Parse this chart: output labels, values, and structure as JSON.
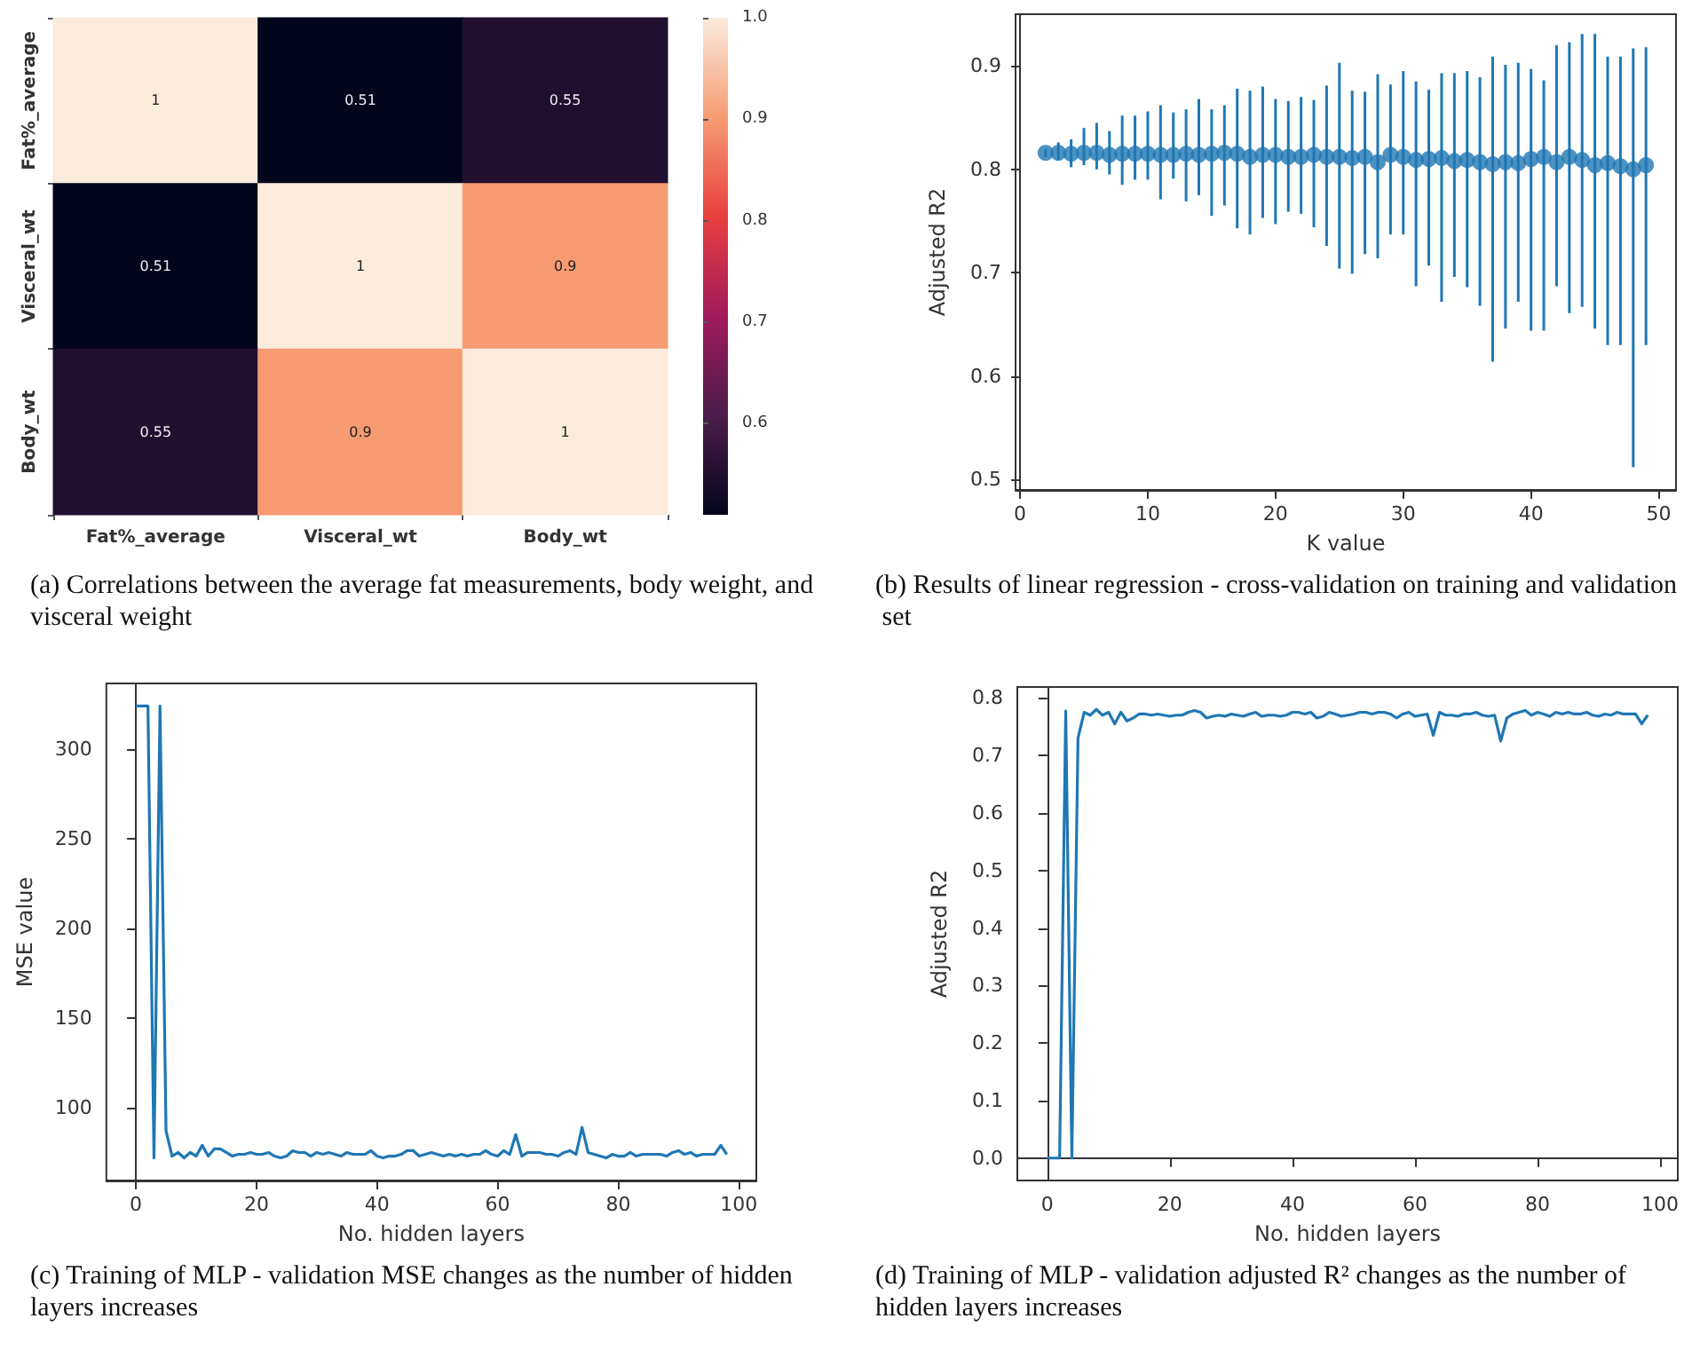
{
  "chart_data": [
    {
      "type": "heatmap",
      "title": "(a) Correlations between the average fat measurements, body weight, and visceral weight",
      "categories": [
        "Fat%_average",
        "Visceral_wt",
        "Body_wt"
      ],
      "y_categories": [
        "Fat%_average",
        "Visceral_wt",
        "Body_wt"
      ],
      "cells": [
        [
          1,
          0.51,
          0.55
        ],
        [
          0.51,
          1,
          0.9
        ],
        [
          0.55,
          0.9,
          1
        ]
      ],
      "data_labels": true,
      "clim": [
        0.51,
        1.0
      ],
      "cticks": [
        0.6,
        0.7,
        0.8,
        0.9,
        {
          "value": 1.0,
          "label": "1.0"
        }
      ]
    },
    {
      "type": "scatter",
      "title": "(b) Results of linear regression - cross-validation on training and validation set",
      "xlabel": "K value",
      "ylabel": "Adjusted R2",
      "marker": "circle",
      "color": "#1f77b4",
      "x": [
        2,
        3,
        4,
        5,
        6,
        7,
        8,
        9,
        10,
        11,
        12,
        13,
        14,
        15,
        16,
        17,
        18,
        19,
        20,
        21,
        22,
        23,
        24,
        25,
        26,
        27,
        28,
        29,
        30,
        31,
        32,
        33,
        34,
        35,
        36,
        37,
        38,
        39,
        40,
        41,
        42,
        43,
        44,
        45,
        46,
        47,
        48,
        49
      ],
      "values": [
        0.816,
        0.816,
        0.815,
        0.816,
        0.816,
        0.814,
        0.815,
        0.815,
        0.815,
        0.814,
        0.814,
        0.815,
        0.814,
        0.815,
        0.816,
        0.815,
        0.812,
        0.814,
        0.814,
        0.812,
        0.812,
        0.814,
        0.812,
        0.812,
        0.811,
        0.812,
        0.807,
        0.814,
        0.812,
        0.809,
        0.81,
        0.811,
        0.808,
        0.809,
        0.807,
        0.805,
        0.807,
        0.806,
        0.81,
        0.812,
        0.807,
        0.812,
        0.809,
        0.804,
        0.806,
        0.803,
        0.8,
        0.804
      ],
      "errors": [
        [
          0.812,
          0.82
        ],
        [
          0.809,
          0.826
        ],
        [
          0.802,
          0.829
        ],
        [
          0.804,
          0.84
        ],
        [
          0.8,
          0.845
        ],
        [
          0.795,
          0.837
        ],
        [
          0.785,
          0.852
        ],
        [
          0.79,
          0.852
        ],
        [
          0.79,
          0.856
        ],
        [
          0.771,
          0.862
        ],
        [
          0.791,
          0.855
        ],
        [
          0.769,
          0.858
        ],
        [
          0.775,
          0.868
        ],
        [
          0.755,
          0.858
        ],
        [
          0.765,
          0.862
        ],
        [
          0.743,
          0.878
        ],
        [
          0.737,
          0.876
        ],
        [
          0.753,
          0.88
        ],
        [
          0.747,
          0.868
        ],
        [
          0.759,
          0.866
        ],
        [
          0.757,
          0.87
        ],
        [
          0.744,
          0.867
        ],
        [
          0.726,
          0.881
        ],
        [
          0.704,
          0.903
        ],
        [
          0.699,
          0.876
        ],
        [
          0.718,
          0.875
        ],
        [
          0.714,
          0.892
        ],
        [
          0.737,
          0.882
        ],
        [
          0.737,
          0.895
        ],
        [
          0.687,
          0.885
        ],
        [
          0.707,
          0.877
        ],
        [
          0.672,
          0.893
        ],
        [
          0.696,
          0.893
        ],
        [
          0.686,
          0.895
        ],
        [
          0.668,
          0.889
        ],
        [
          0.614,
          0.909
        ],
        [
          0.646,
          0.901
        ],
        [
          0.672,
          0.903
        ],
        [
          0.644,
          0.897
        ],
        [
          0.644,
          0.886
        ],
        [
          0.687,
          0.92
        ],
        [
          0.661,
          0.923
        ],
        [
          0.667,
          0.931
        ],
        [
          0.646,
          0.931
        ],
        [
          0.63,
          0.909
        ],
        [
          0.63,
          0.909
        ],
        [
          0.512,
          0.917
        ],
        [
          0.63,
          0.918
        ]
      ],
      "xlim": [
        -0.35,
        51.35
      ],
      "xticks": [
        0,
        10,
        20,
        30,
        40,
        50
      ],
      "ylim": [
        0.49,
        0.95
      ],
      "yticks": [
        0.5,
        0.6,
        0.7,
        0.8,
        0.9
      ]
    },
    {
      "type": "line",
      "title": "(c) Training of MLP - validation MSE changes as the number of hidden layers increases",
      "xlabel": "No. hidden layers",
      "ylabel": "MSE value",
      "marker": "none",
      "color": "#1f77b4",
      "x": [
        0,
        1,
        2,
        3,
        4,
        5,
        6,
        7,
        8,
        9,
        10,
        11,
        12,
        13,
        14,
        15,
        16,
        17,
        18,
        19,
        20,
        21,
        22,
        23,
        24,
        25,
        26,
        27,
        28,
        29,
        30,
        31,
        32,
        33,
        34,
        35,
        36,
        37,
        38,
        39,
        40,
        41,
        42,
        43,
        44,
        45,
        46,
        47,
        48,
        49,
        50,
        51,
        52,
        53,
        54,
        55,
        56,
        57,
        58,
        59,
        60,
        61,
        62,
        63,
        64,
        65,
        66,
        67,
        68,
        69,
        70,
        71,
        72,
        73,
        74,
        75,
        76,
        77,
        78,
        79,
        80,
        81,
        82,
        83,
        84,
        85,
        86,
        87,
        88,
        89,
        90,
        91,
        92,
        93,
        94,
        95,
        96,
        97,
        98
      ],
      "values": [
        324,
        324,
        324,
        72,
        324,
        87,
        73,
        75,
        72,
        75,
        73,
        79,
        73,
        77,
        77,
        75,
        73,
        74,
        74,
        75,
        74,
        74,
        75,
        73,
        72,
        73,
        76,
        75,
        75,
        73,
        75,
        74,
        75,
        74,
        73,
        75,
        74,
        74,
        74,
        76,
        73,
        72,
        73,
        73,
        74,
        76,
        76,
        73,
        74,
        75,
        74,
        73,
        74,
        73,
        74,
        73,
        74,
        74,
        76,
        74,
        73,
        76,
        74,
        85,
        73,
        75,
        75,
        75,
        74,
        74,
        73,
        75,
        76,
        74,
        89,
        75,
        74,
        73,
        72,
        74,
        73,
        73,
        75,
        73,
        74,
        74,
        74,
        74,
        73,
        75,
        76,
        74,
        75,
        73,
        74,
        74,
        74,
        79,
        74
      ],
      "xlim": [
        -4.9,
        102.9
      ],
      "xticks": [
        0,
        20,
        40,
        60,
        80,
        100
      ],
      "ylim": [
        59.4,
        336.6
      ],
      "yticks": [
        100,
        150,
        200,
        250,
        300
      ]
    },
    {
      "type": "line",
      "title": "(d) Training of MLP - validation adjusted R² changes as the number of hidden layers increases",
      "xlabel": "No. hidden layers",
      "ylabel": "Adjusted R2",
      "marker": "none",
      "color": "#1f77b4",
      "x": [
        0,
        1,
        2,
        3,
        4,
        5,
        6,
        7,
        8,
        9,
        10,
        11,
        12,
        13,
        14,
        15,
        16,
        17,
        18,
        19,
        20,
        21,
        22,
        23,
        24,
        25,
        26,
        27,
        28,
        29,
        30,
        31,
        32,
        33,
        34,
        35,
        36,
        37,
        38,
        39,
        40,
        41,
        42,
        43,
        44,
        45,
        46,
        47,
        48,
        49,
        50,
        51,
        52,
        53,
        54,
        55,
        56,
        57,
        58,
        59,
        60,
        61,
        62,
        63,
        64,
        65,
        66,
        67,
        68,
        69,
        70,
        71,
        72,
        73,
        74,
        75,
        76,
        77,
        78,
        79,
        80,
        81,
        82,
        83,
        84,
        85,
        86,
        87,
        88,
        89,
        90,
        91,
        92,
        93,
        94,
        95,
        96,
        97,
        98
      ],
      "values": [
        0,
        0,
        0,
        0.777,
        0,
        0.73,
        0.775,
        0.77,
        0.78,
        0.77,
        0.775,
        0.755,
        0.775,
        0.76,
        0.765,
        0.772,
        0.772,
        0.77,
        0.772,
        0.77,
        0.768,
        0.77,
        0.77,
        0.775,
        0.778,
        0.775,
        0.765,
        0.768,
        0.77,
        0.768,
        0.772,
        0.77,
        0.768,
        0.772,
        0.775,
        0.768,
        0.77,
        0.77,
        0.768,
        0.77,
        0.775,
        0.775,
        0.772,
        0.775,
        0.765,
        0.768,
        0.775,
        0.772,
        0.768,
        0.77,
        0.772,
        0.775,
        0.775,
        0.772,
        0.775,
        0.775,
        0.772,
        0.765,
        0.772,
        0.775,
        0.768,
        0.77,
        0.772,
        0.735,
        0.775,
        0.77,
        0.77,
        0.768,
        0.772,
        0.772,
        0.775,
        0.77,
        0.768,
        0.77,
        0.725,
        0.765,
        0.772,
        0.775,
        0.778,
        0.77,
        0.775,
        0.772,
        0.768,
        0.775,
        0.772,
        0.775,
        0.772,
        0.772,
        0.775,
        0.77,
        0.768,
        0.772,
        0.77,
        0.775,
        0.772,
        0.772,
        0.772,
        0.755,
        0.77
      ],
      "xlim": [
        -4.9,
        102.9
      ],
      "xticks": [
        0,
        20,
        40,
        60,
        80,
        100
      ],
      "ylim": [
        -0.039,
        0.819
      ],
      "yticks": [
        {
          "value": 0,
          "label": "0.0"
        },
        0.1,
        0.2,
        0.3,
        0.4,
        0.5,
        0.6,
        0.7,
        0.8
      ]
    }
  ]
}
